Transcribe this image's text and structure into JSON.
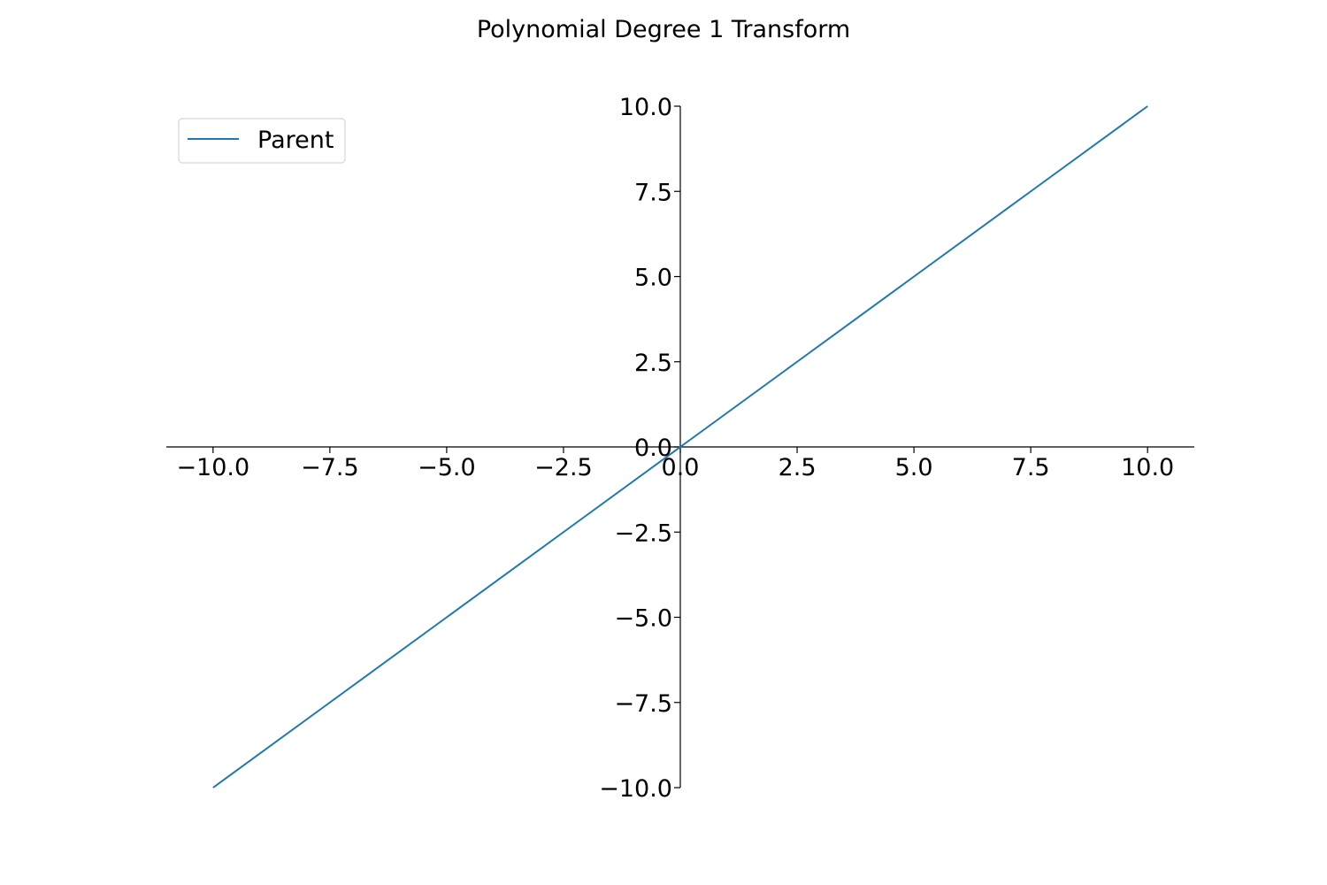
{
  "chart_data": {
    "type": "line",
    "title": "Polynomial Degree 1 Transform",
    "xlabel": "",
    "ylabel": "",
    "xlim": [
      -11,
      11
    ],
    "ylim": [
      -10,
      10
    ],
    "x_ticks": [
      -10.0,
      -7.5,
      -5.0,
      -2.5,
      0.0,
      2.5,
      5.0,
      7.5,
      10.0
    ],
    "x_tick_labels": [
      "−10.0",
      "−7.5",
      "−5.0",
      "−2.5",
      "0.0",
      "2.5",
      "5.0",
      "7.5",
      "10.0"
    ],
    "y_ticks": [
      10.0,
      7.5,
      5.0,
      2.5,
      0.0,
      -2.5,
      -5.0,
      -7.5,
      -10.0
    ],
    "y_tick_labels": [
      "10.0",
      "7.5",
      "5.0",
      "2.5",
      "0.0",
      "−2.5",
      "−5.0",
      "−7.5",
      "−10.0"
    ],
    "spines": "centered at origin",
    "grid": false,
    "legend_position": "upper left",
    "series": [
      {
        "name": "Parent",
        "color": "#1f77b4",
        "x": [
          -10,
          -7.5,
          -5,
          -2.5,
          0,
          2.5,
          5,
          7.5,
          10
        ],
        "y": [
          -10,
          -7.5,
          -5,
          -2.5,
          0,
          2.5,
          5,
          7.5,
          10
        ]
      }
    ]
  }
}
